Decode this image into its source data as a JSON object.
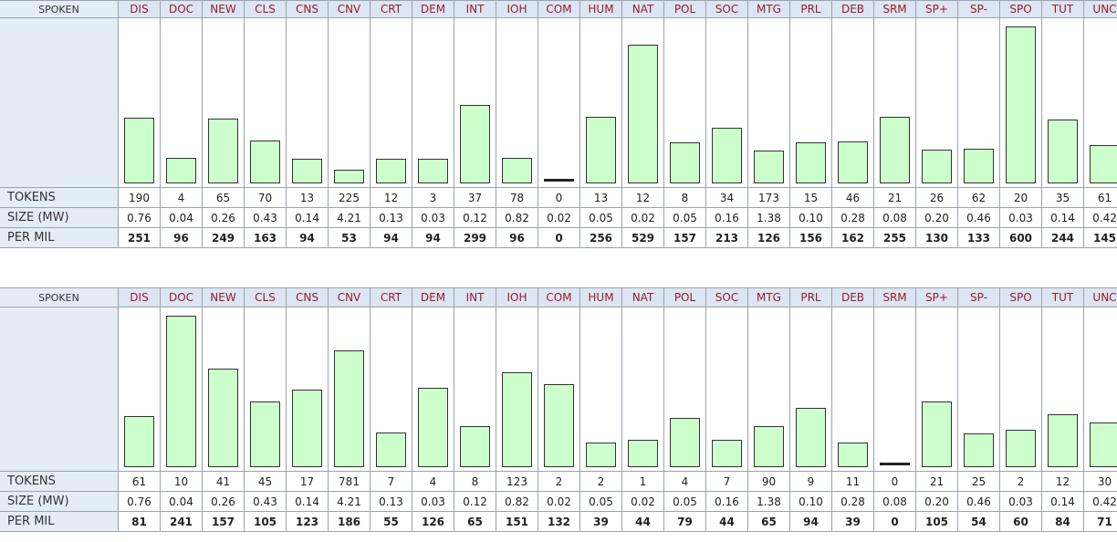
{
  "tables": [
    {
      "header": "SPOKEN",
      "categories": [
        "DIS",
        "DOC",
        "NEW",
        "CLS",
        "CNS",
        "CNV",
        "CRT",
        "DEM",
        "INT",
        "IOH",
        "COM",
        "HUM",
        "NAT",
        "POL",
        "SOC",
        "MTG",
        "PRL",
        "DEB",
        "SRM",
        "SP+",
        "SP-",
        "SPO",
        "TUT",
        "UNC"
      ],
      "row_labels": [
        "TOKENS",
        "SIZE (MW)",
        "PER MIL"
      ],
      "tokens": [
        190,
        4,
        65,
        70,
        13,
        225,
        12,
        3,
        37,
        78,
        0,
        13,
        12,
        8,
        34,
        173,
        15,
        46,
        21,
        26,
        62,
        20,
        35,
        61
      ],
      "size": [
        "0.76",
        "0.04",
        "0.26",
        "0.43",
        "0.14",
        "4.21",
        "0.13",
        "0.03",
        "0.12",
        "0.82",
        "0.02",
        "0.05",
        "0.02",
        "0.05",
        "0.16",
        "1.38",
        "0.10",
        "0.28",
        "0.08",
        "0.20",
        "0.46",
        "0.03",
        "0.14",
        "0.42"
      ],
      "per_mil": [
        251,
        96,
        249,
        163,
        94,
        53,
        94,
        94,
        299,
        96,
        0,
        256,
        529,
        157,
        213,
        126,
        156,
        162,
        255,
        130,
        133,
        600,
        244,
        145
      ]
    },
    {
      "header": "SPOKEN",
      "categories": [
        "DIS",
        "DOC",
        "NEW",
        "CLS",
        "CNS",
        "CNV",
        "CRT",
        "DEM",
        "INT",
        "IOH",
        "COM",
        "HUM",
        "NAT",
        "POL",
        "SOC",
        "MTG",
        "PRL",
        "DEB",
        "SRM",
        "SP+",
        "SP-",
        "SPO",
        "TUT",
        "UNC"
      ],
      "row_labels": [
        "TOKENS",
        "SIZE (MW)",
        "PER MIL"
      ],
      "tokens": [
        61,
        10,
        41,
        45,
        17,
        781,
        7,
        4,
        8,
        123,
        2,
        2,
        1,
        4,
        7,
        90,
        9,
        11,
        0,
        21,
        25,
        2,
        12,
        30
      ],
      "size": [
        "0.76",
        "0.04",
        "0.26",
        "0.43",
        "0.14",
        "4.21",
        "0.13",
        "0.03",
        "0.12",
        "0.82",
        "0.02",
        "0.05",
        "0.02",
        "0.05",
        "0.16",
        "1.38",
        "0.10",
        "0.28",
        "0.08",
        "0.20",
        "0.46",
        "0.03",
        "0.14",
        "0.42"
      ],
      "per_mil": [
        81,
        241,
        157,
        105,
        123,
        186,
        55,
        126,
        65,
        151,
        132,
        39,
        44,
        79,
        44,
        65,
        94,
        39,
        0,
        105,
        54,
        60,
        84,
        71
      ]
    }
  ]
}
